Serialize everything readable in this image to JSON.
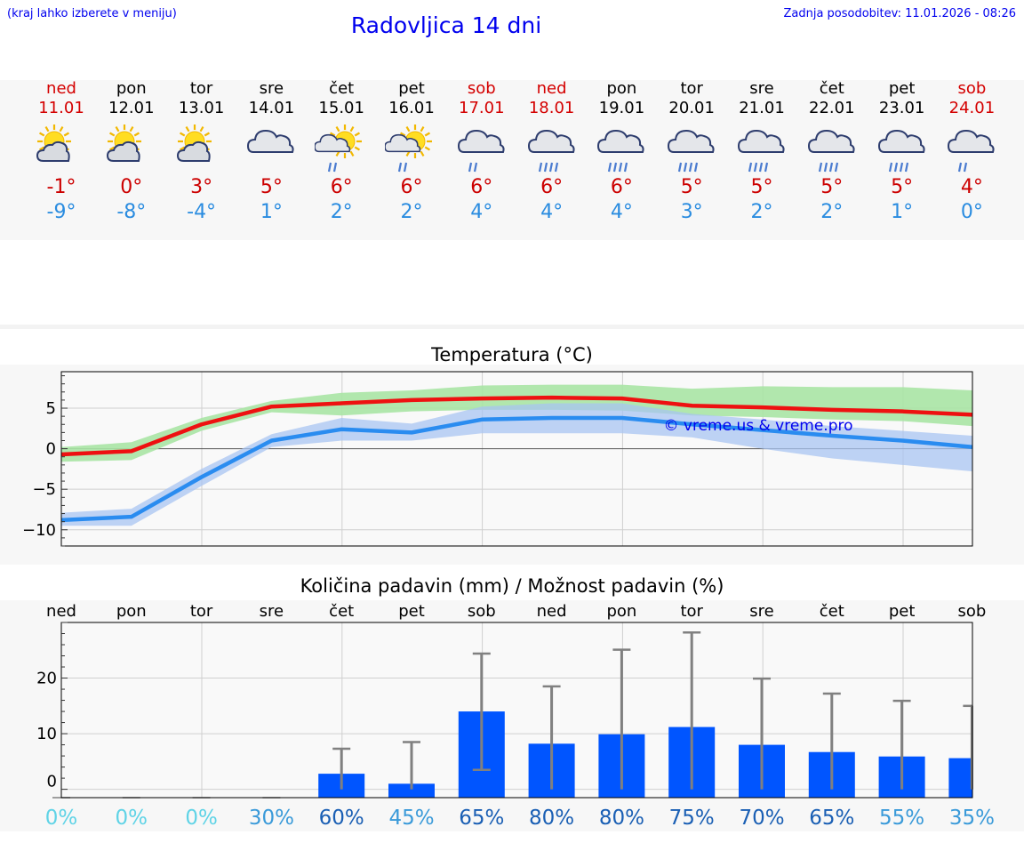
{
  "header": {
    "menu_hint": "(kraj lahko izberete v meniju)",
    "title": "Radovljica 14 dni",
    "updated": "Zadnja posodobitev: 11.01.2026 - 08:26"
  },
  "days": [
    {
      "name": "ned",
      "date": "11.01",
      "weekend": true,
      "icon": "sun-cloud-icon",
      "tmax": "-1°",
      "tmin": "-9°"
    },
    {
      "name": "pon",
      "date": "12.01",
      "weekend": false,
      "icon": "sun-cloud-icon",
      "tmax": "0°",
      "tmin": "-8°"
    },
    {
      "name": "tor",
      "date": "13.01",
      "weekend": false,
      "icon": "sun-cloud-icon",
      "tmax": "3°",
      "tmin": "-4°"
    },
    {
      "name": "sre",
      "date": "14.01",
      "weekend": false,
      "icon": "cloud-icon",
      "tmax": "5°",
      "tmin": "1°"
    },
    {
      "name": "čet",
      "date": "15.01",
      "weekend": false,
      "icon": "sun-cloud-light-rain-icon",
      "tmax": "6°",
      "tmin": "2°"
    },
    {
      "name": "pet",
      "date": "16.01",
      "weekend": false,
      "icon": "sun-cloud-light-rain-icon",
      "tmax": "6°",
      "tmin": "2°"
    },
    {
      "name": "sob",
      "date": "17.01",
      "weekend": true,
      "icon": "cloud-light-rain-icon",
      "tmax": "6°",
      "tmin": "4°"
    },
    {
      "name": "ned",
      "date": "18.01",
      "weekend": true,
      "icon": "cloud-rain-icon",
      "tmax": "6°",
      "tmin": "4°"
    },
    {
      "name": "pon",
      "date": "19.01",
      "weekend": false,
      "icon": "cloud-rain-icon",
      "tmax": "6°",
      "tmin": "4°"
    },
    {
      "name": "tor",
      "date": "20.01",
      "weekend": false,
      "icon": "cloud-rain-icon",
      "tmax": "5°",
      "tmin": "3°"
    },
    {
      "name": "sre",
      "date": "21.01",
      "weekend": false,
      "icon": "cloud-rain-icon",
      "tmax": "5°",
      "tmin": "2°"
    },
    {
      "name": "čet",
      "date": "22.01",
      "weekend": false,
      "icon": "cloud-rain-icon",
      "tmax": "5°",
      "tmin": "2°"
    },
    {
      "name": "pet",
      "date": "23.01",
      "weekend": false,
      "icon": "cloud-rain-icon",
      "tmax": "5°",
      "tmin": "1°"
    },
    {
      "name": "sob",
      "date": "24.01",
      "weekend": true,
      "icon": "cloud-light-rain-icon",
      "tmax": "4°",
      "tmin": "0°"
    }
  ],
  "colors": {
    "max_line": "#ee1111",
    "max_band": "#a8e4a4",
    "min_line": "#2a8cf0",
    "min_band": "#a8c4f2",
    "bar": "#0055ff",
    "whisker": "#808080",
    "title": "#0000ee"
  },
  "chart_data": [
    {
      "type": "line",
      "title": "Temperatura (°C)",
      "watermark": "© vreme.us & vreme.pro",
      "ylim": [
        -12,
        9.5
      ],
      "yticks": [
        5,
        0,
        -5,
        -10
      ],
      "ytick_labels": [
        "5",
        "0",
        "−5",
        "−10"
      ],
      "series": [
        {
          "name": "max",
          "values": [
            -0.7,
            -0.3,
            3.0,
            5.2,
            5.6,
            6.0,
            6.2,
            6.3,
            6.2,
            5.3,
            5.1,
            4.8,
            4.6,
            4.2
          ],
          "band_hi": [
            0.2,
            0.8,
            3.8,
            5.9,
            6.9,
            7.2,
            7.8,
            7.9,
            7.9,
            7.4,
            7.7,
            7.6,
            7.6,
            7.2
          ],
          "band_lo": [
            -1.6,
            -1.4,
            2.2,
            4.5,
            4.1,
            4.6,
            4.8,
            4.8,
            4.7,
            4.1,
            3.9,
            3.6,
            3.4,
            2.8
          ]
        },
        {
          "name": "min",
          "values": [
            -8.8,
            -8.4,
            -3.5,
            1.0,
            2.4,
            2.0,
            3.6,
            3.8,
            3.8,
            3.0,
            2.3,
            1.6,
            1.0,
            0.2
          ],
          "band_hi": [
            -7.9,
            -7.4,
            -2.5,
            1.8,
            3.8,
            3.1,
            5.2,
            5.6,
            5.6,
            4.3,
            3.6,
            2.8,
            2.2,
            1.6
          ],
          "band_lo": [
            -9.5,
            -9.5,
            -4.6,
            0.2,
            1.0,
            1.0,
            1.9,
            1.9,
            1.9,
            1.4,
            0.0,
            -1.2,
            -2.0,
            -2.8
          ]
        }
      ]
    },
    {
      "type": "bar",
      "title": "Količina padavin (mm) / Možnost padavin (%)",
      "categories": [
        "ned",
        "pon",
        "tor",
        "sre",
        "čet",
        "pet",
        "sob",
        "ned",
        "pon",
        "tor",
        "sre",
        "čet",
        "pet",
        "sob"
      ],
      "values": [
        0,
        0,
        0,
        0,
        2.8,
        1.0,
        14.0,
        8.2,
        9.9,
        11.2,
        8.0,
        6.7,
        5.9,
        5.6
      ],
      "error_hi": [
        0,
        0,
        0,
        0,
        7.3,
        8.5,
        24.4,
        18.5,
        25.1,
        28.2,
        19.9,
        17.2,
        15.9,
        15.0
      ],
      "error_lo": [
        0,
        0,
        0,
        0,
        0,
        0,
        3.5,
        0,
        0,
        0,
        0,
        0,
        0,
        0
      ],
      "chance": [
        "0%",
        "0%",
        "0%",
        "30%",
        "60%",
        "45%",
        "65%",
        "80%",
        "80%",
        "75%",
        "70%",
        "65%",
        "55%",
        "35%"
      ],
      "chance_values": [
        0,
        0,
        0,
        30,
        60,
        45,
        65,
        80,
        80,
        75,
        70,
        65,
        55,
        35
      ],
      "ylim": [
        -1.5,
        30
      ],
      "yticks": [
        20,
        10,
        0
      ],
      "ytick_labels": [
        "20",
        "10",
        "0"
      ]
    }
  ]
}
